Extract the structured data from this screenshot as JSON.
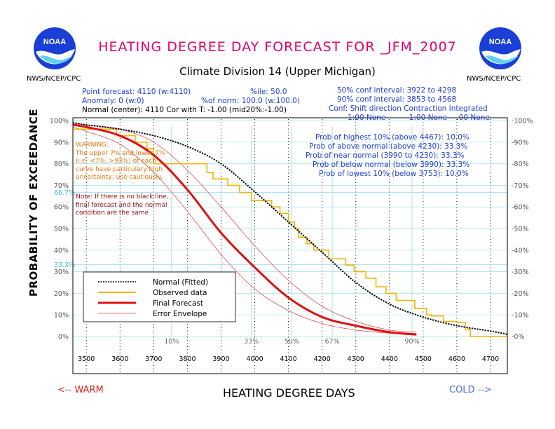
{
  "header": {
    "title": "HEATING DEGREE DAY FORECAST FOR _JFM_2007",
    "subtitle": "Climate Division 14 (Upper Michigan)",
    "agency_left": "NWS/NCEP/CPC",
    "agency_right": "NWS/NCEP/CPC",
    "logo_text": "NOAA"
  },
  "info": {
    "point_forecast": "Point forecast: 4110 (w:4110)",
    "percentile": "%ile: 50.0",
    "anomaly": "Anomaly: 0 (w:0)",
    "pct_of_norm": "%of norm:  100.0 (w:100.0)",
    "normal_center": "Normal (center): 4110 Cor with T: -1.00 (mid20%:-1.00)",
    "conf50": "50% conf interval: 3922 to 4298",
    "conf90": "90% conf interval: 3853 to 4568",
    "conf_header": "Conf: Shift direction   Contraction   Integrated",
    "conf_values": "1:00 None          1:00 None    .00 None"
  },
  "probabilities": [
    "Prob of highest 10% (above 4467): 10.0%",
    "Prob of above normal (above 4230): 33.3%",
    "Prob of near normal (3990 to 4230): 33.3%",
    "Prob of below normal (below 3990): 33.3%",
    "Prob of lowest 10% (below 3753): 10.0%"
  ],
  "warning": {
    "title": "WARNING:",
    "lines": [
      "The upper 7% and lower 7%",
      "(i.e. <7%, >93%) of each",
      "curve have particulary high",
      "uncertainty; use cautiously."
    ]
  },
  "note": {
    "lines": [
      "Note: If there is no black line,",
      "final forecast and  the normal",
      "condition are the same"
    ]
  },
  "axis": {
    "xlabel": "HEATING DEGREE DAYS",
    "ylabel": "PROBABILITY OF EXCEEDANCE",
    "warm": "<-- WARM",
    "cold": "COLD -->"
  },
  "colors": {
    "normal": "#000000",
    "observed": "#f0b400",
    "forecast": "#e01010",
    "envelope": "#e05050",
    "guide": "#9fe0ef",
    "title": "#e0006e",
    "info_blue": "#1e3fd8"
  },
  "chart_data": {
    "type": "line",
    "xlim": [
      3460,
      4750
    ],
    "ylim": [
      0,
      100
    ],
    "xticks": [
      3500,
      3600,
      3700,
      3800,
      3900,
      4000,
      4100,
      4200,
      4300,
      4400,
      4500,
      4600,
      4700
    ],
    "yticks": [
      0,
      10,
      20,
      30,
      40,
      50,
      60,
      70,
      80,
      90,
      100
    ],
    "ytick_labels": [
      "0%",
      "10%",
      "20%",
      "30%",
      "40%",
      "50%",
      "60%",
      "70%",
      "80%",
      "90%",
      "100%"
    ],
    "guide_levels": {
      "y": [
        66.7,
        33.3
      ],
      "y_labels": [
        "66.7%",
        "33.3%"
      ]
    },
    "quantile_markers": [
      {
        "label": "10%",
        "x": 3753
      },
      {
        "label": "33%",
        "x": 3990
      },
      {
        "label": "50%",
        "x": 4110
      },
      {
        "label": "67%",
        "x": 4230
      },
      {
        "label": "90%",
        "x": 4467
      }
    ],
    "legend": {
      "position": "lower-left",
      "entries": [
        "Normal (Fitted)",
        "Observed data",
        "Final Forecast",
        "Error Envelope"
      ]
    },
    "series": [
      {
        "name": "Normal (Fitted)",
        "style": "dotted",
        "x": [
          3460,
          3500,
          3600,
          3700,
          3800,
          3900,
          4000,
          4100,
          4200,
          4300,
          4400,
          4500,
          4600,
          4700,
          4750
        ],
        "y": [
          99,
          98,
          96,
          93,
          88,
          80,
          67,
          53,
          39,
          25,
          15,
          9,
          5,
          2.5,
          1
        ]
      },
      {
        "name": "Observed data",
        "style": "step",
        "x": [
          3460,
          3545,
          3590,
          3645,
          3680,
          3700,
          3750,
          3850,
          3858,
          3876,
          3920,
          3955,
          3990,
          4050,
          4075,
          4100,
          4118,
          4130,
          4155,
          4175,
          4220,
          4270,
          4295,
          4330,
          4360,
          4390,
          4420,
          4475,
          4510,
          4525,
          4560,
          4600,
          4625,
          4640,
          4750
        ],
        "y": [
          96,
          96,
          93,
          90,
          87,
          80,
          80,
          80,
          76,
          73,
          70,
          66.7,
          63,
          60,
          57,
          53,
          50,
          46,
          43,
          40,
          36,
          33,
          30,
          27,
          23,
          20,
          16.7,
          13,
          10,
          9.5,
          7,
          6.5,
          3.3,
          0,
          0
        ]
      },
      {
        "name": "Final Forecast",
        "style": "solid",
        "x": [
          3460,
          3500,
          3600,
          3700,
          3800,
          3900,
          4000,
          4100,
          4200,
          4300,
          4400,
          4480
        ],
        "y": [
          98,
          97,
          93,
          84,
          68,
          48,
          32,
          18,
          9,
          5,
          2,
          1
        ]
      },
      {
        "name": "Error Envelope",
        "style": "thin",
        "x": [
          3460,
          3500,
          3600,
          3700,
          3800,
          3900,
          4000,
          4100,
          4200,
          4300,
          4400,
          4480
        ],
        "y": [
          99,
          98,
          96,
          90,
          77,
          60,
          42,
          26,
          14,
          7,
          3,
          2
        ]
      },
      {
        "name": "Error Envelope",
        "style": "thin",
        "x": [
          3460,
          3500,
          3600,
          3700,
          3800,
          3900,
          4000,
          4100,
          4200,
          4300,
          4400,
          4480
        ],
        "y": [
          97,
          95,
          89,
          76,
          58,
          38,
          22,
          12,
          6,
          3,
          1.5,
          0.5
        ]
      }
    ]
  }
}
